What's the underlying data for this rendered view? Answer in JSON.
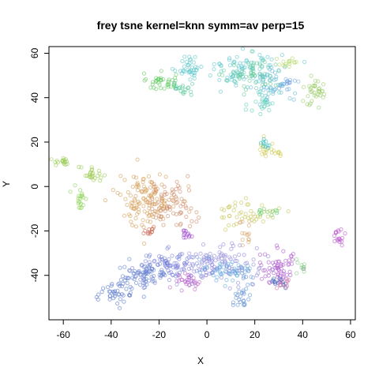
{
  "chart_data": {
    "type": "scatter",
    "title": "frey tsne kernel=knn symm=av perp=15",
    "xlabel": "X",
    "ylabel": "Y",
    "xlim": [
      -66,
      62
    ],
    "ylim": [
      -60,
      63
    ],
    "xticks": [
      -60,
      -40,
      -20,
      0,
      20,
      40,
      60
    ],
    "yticks": [
      -40,
      -20,
      0,
      20,
      40,
      60
    ],
    "grid": false,
    "legend": "none",
    "marker": "open-circle",
    "clusters": [
      {
        "color": "#5cc6c9",
        "center": [
          -8,
          54
        ],
        "spread": [
          3,
          3
        ],
        "count": 35
      },
      {
        "color": "#66cc66",
        "center": [
          -19,
          47
        ],
        "spread": [
          3,
          2
        ],
        "count": 40
      },
      {
        "color": "#55c89a",
        "center": [
          -10,
          44
        ],
        "spread": [
          3,
          2
        ],
        "count": 20
      },
      {
        "color": "#5fc6cf",
        "center": [
          15,
          53
        ],
        "spread": [
          8,
          4
        ],
        "count": 90
      },
      {
        "color": "#66cc99",
        "center": [
          20,
          50
        ],
        "spread": [
          6,
          4
        ],
        "count": 60
      },
      {
        "color": "#66b8d8",
        "center": [
          28,
          46
        ],
        "spread": [
          4,
          4
        ],
        "count": 45
      },
      {
        "color": "#5ccfb8",
        "center": [
          24,
          38
        ],
        "spread": [
          3,
          4
        ],
        "count": 25
      },
      {
        "color": "#b6d86a",
        "center": [
          34,
          56
        ],
        "spread": [
          2,
          2
        ],
        "count": 15
      },
      {
        "color": "#99cc66",
        "center": [
          45,
          42
        ],
        "spread": [
          3,
          3
        ],
        "count": 35
      },
      {
        "color": "#6c9fe0",
        "center": [
          33,
          47
        ],
        "spread": [
          2,
          2
        ],
        "count": 12
      },
      {
        "color": "#cfcc55",
        "center": [
          27,
          17
        ],
        "spread": [
          3,
          2
        ],
        "count": 22
      },
      {
        "color": "#33bbbb",
        "center": [
          25,
          19
        ],
        "spread": [
          1.5,
          1.2
        ],
        "count": 10
      },
      {
        "color": "#99cc55",
        "center": [
          -60,
          11
        ],
        "spread": [
          2,
          0.8
        ],
        "count": 18
      },
      {
        "color": "#9ccc55",
        "center": [
          -48,
          5
        ],
        "spread": [
          3,
          2
        ],
        "count": 25
      },
      {
        "color": "#8bd052",
        "center": [
          -53,
          -5
        ],
        "spread": [
          1.5,
          2.5
        ],
        "count": 20
      },
      {
        "color": "#d49c55",
        "center": [
          -25,
          -6
        ],
        "spread": [
          6,
          6
        ],
        "count": 130
      },
      {
        "color": "#cc8866",
        "center": [
          -15,
          -8
        ],
        "spread": [
          5,
          5
        ],
        "count": 70
      },
      {
        "color": "#cc6655",
        "center": [
          -24,
          -20
        ],
        "spread": [
          1.5,
          1.2
        ],
        "count": 12
      },
      {
        "color": "#c5c455",
        "center": [
          17,
          -12
        ],
        "spread": [
          6,
          3
        ],
        "count": 45
      },
      {
        "color": "#66cc66",
        "center": [
          26,
          -11
        ],
        "spread": [
          2,
          1.5
        ],
        "count": 12
      },
      {
        "color": "#d6a66a",
        "center": [
          16,
          -21
        ],
        "spread": [
          2,
          3
        ],
        "count": 15
      },
      {
        "color": "#9944cc",
        "center": [
          -8,
          -21
        ],
        "spread": [
          1.5,
          1.5
        ],
        "count": 12
      },
      {
        "color": "#bb55cc",
        "center": [
          55,
          -23
        ],
        "spread": [
          1.2,
          1.8
        ],
        "count": 18
      },
      {
        "color": "#7780d8",
        "center": [
          -15,
          -35
        ],
        "spread": [
          7,
          3
        ],
        "count": 80
      },
      {
        "color": "#6680d0",
        "center": [
          -26,
          -40
        ],
        "spread": [
          5,
          3
        ],
        "count": 80
      },
      {
        "color": "#5577cc",
        "center": [
          -38,
          -48
        ],
        "spread": [
          4,
          2.5
        ],
        "count": 40
      },
      {
        "color": "#8f88d8",
        "center": [
          5,
          -35
        ],
        "spread": [
          8,
          4
        ],
        "count": 120
      },
      {
        "color": "#66aadd",
        "center": [
          8,
          -38
        ],
        "spread": [
          5,
          3
        ],
        "count": 50
      },
      {
        "color": "#b866cc",
        "center": [
          -8,
          -42
        ],
        "spread": [
          3,
          2
        ],
        "count": 30
      },
      {
        "color": "#5e8ed0",
        "center": [
          15,
          -47
        ],
        "spread": [
          2,
          4
        ],
        "count": 30
      },
      {
        "color": "#aa55cc",
        "center": [
          30,
          -37
        ],
        "spread": [
          4,
          4
        ],
        "count": 60
      },
      {
        "color": "#4466bb",
        "center": [
          30,
          -43
        ],
        "spread": [
          2,
          1.5
        ],
        "count": 15
      },
      {
        "color": "#88cc88",
        "center": [
          40,
          -36
        ],
        "spread": [
          1.5,
          1.5
        ],
        "count": 10
      },
      {
        "color": "#cc77aa",
        "center": [
          32,
          -44
        ],
        "spread": [
          2,
          1.5
        ],
        "count": 12
      }
    ]
  }
}
